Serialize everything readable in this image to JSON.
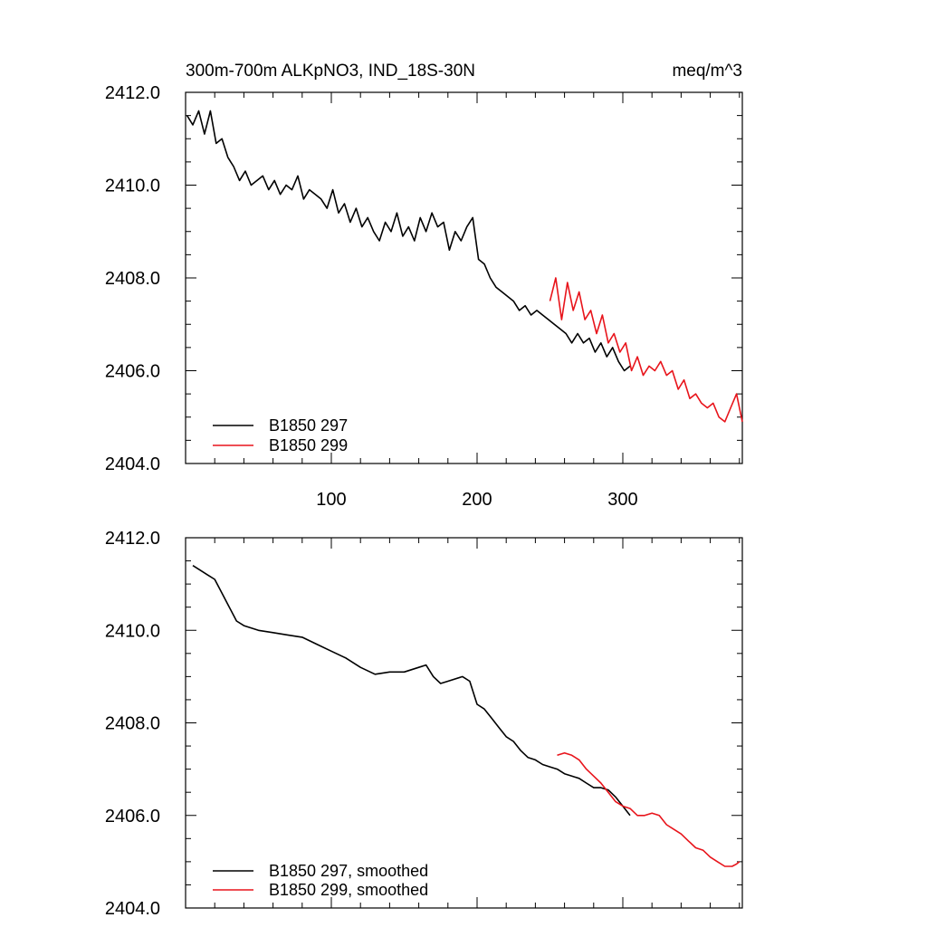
{
  "figure": {
    "left_title": "300m-700m ALKpNO3, IND_18S-30N",
    "right_title": "meq/m^3",
    "colors": {
      "B1850 297": "#000000",
      "B1850 299": "#e8141b"
    }
  },
  "chart_data": [
    {
      "type": "line",
      "title": "300m-700m ALKpNO3, IND_18S-30N",
      "units": "meq/m^3",
      "xlabel": "",
      "ylabel": "",
      "xlim": [
        0,
        382
      ],
      "ylim": [
        2404.0,
        2412.0
      ],
      "yticks": [
        2404.0,
        2406.0,
        2408.0,
        2410.0,
        2412.0
      ],
      "ytick_labels": [
        "2404.0",
        "2406.0",
        "2408.0",
        "2410.0",
        "2412.0"
      ],
      "xticks": [
        100,
        200,
        300
      ],
      "xtick_labels": [
        "100",
        "200",
        "300"
      ],
      "grid": false,
      "legend_position": "bottom-left",
      "series": [
        {
          "name": "B1850 297",
          "color": "#000000",
          "x": [
            1,
            5,
            9,
            13,
            17,
            21,
            25,
            29,
            33,
            37,
            41,
            45,
            49,
            53,
            57,
            61,
            65,
            69,
            73,
            77,
            81,
            85,
            89,
            93,
            97,
            101,
            105,
            109,
            113,
            117,
            121,
            125,
            129,
            133,
            137,
            141,
            145,
            149,
            153,
            157,
            161,
            165,
            169,
            173,
            177,
            181,
            185,
            189,
            193,
            197,
            201,
            205,
            209,
            213,
            217,
            221,
            225,
            229,
            233,
            237,
            241,
            245,
            249,
            253,
            257,
            261,
            265,
            269,
            273,
            277,
            281,
            285,
            289,
            293,
            297,
            301,
            305
          ],
          "y": [
            2411.5,
            2411.3,
            2411.6,
            2411.1,
            2411.6,
            2410.9,
            2411.0,
            2410.6,
            2410.4,
            2410.1,
            2410.3,
            2410.0,
            2410.1,
            2410.2,
            2409.9,
            2410.1,
            2409.8,
            2410.0,
            2409.9,
            2410.2,
            2409.7,
            2409.9,
            2409.8,
            2409.7,
            2409.5,
            2409.9,
            2409.4,
            2409.6,
            2409.2,
            2409.5,
            2409.1,
            2409.3,
            2409.0,
            2408.8,
            2409.2,
            2409.0,
            2409.4,
            2408.9,
            2409.1,
            2408.8,
            2409.3,
            2409.0,
            2409.4,
            2409.1,
            2409.2,
            2408.6,
            2409.0,
            2408.8,
            2409.1,
            2409.3,
            2408.4,
            2408.3,
            2408.0,
            2407.8,
            2407.7,
            2407.6,
            2407.5,
            2407.3,
            2407.4,
            2407.2,
            2407.3,
            2407.2,
            2407.1,
            2407.0,
            2406.9,
            2406.8,
            2406.6,
            2406.8,
            2406.6,
            2406.7,
            2406.4,
            2406.6,
            2406.3,
            2406.5,
            2406.2,
            2406.0,
            2406.1
          ]
        },
        {
          "name": "B1850 299",
          "color": "#e8141b",
          "x": [
            250,
            254,
            258,
            262,
            266,
            270,
            274,
            278,
            282,
            286,
            290,
            294,
            298,
            302,
            306,
            310,
            314,
            318,
            322,
            326,
            330,
            334,
            338,
            342,
            346,
            350,
            354,
            358,
            362,
            366,
            370,
            374,
            378,
            382
          ],
          "y": [
            2407.5,
            2408.0,
            2407.1,
            2407.9,
            2407.3,
            2407.7,
            2407.1,
            2407.3,
            2406.8,
            2407.2,
            2406.6,
            2406.8,
            2406.4,
            2406.6,
            2406.0,
            2406.3,
            2405.9,
            2406.1,
            2406.0,
            2406.2,
            2405.9,
            2406.0,
            2405.6,
            2405.8,
            2405.4,
            2405.5,
            2405.3,
            2405.2,
            2405.3,
            2405.0,
            2404.9,
            2405.2,
            2405.5,
            2404.9
          ]
        }
      ]
    },
    {
      "type": "line",
      "title": "",
      "xlabel": "",
      "ylabel": "",
      "xlim": [
        0,
        382
      ],
      "ylim": [
        2404.0,
        2412.0
      ],
      "yticks": [
        2404.0,
        2406.0,
        2408.0,
        2410.0,
        2412.0
      ],
      "ytick_labels": [
        "2404.0",
        "2406.0",
        "2408.0",
        "2410.0",
        "2412.0"
      ],
      "xticks": [
        100,
        200,
        300
      ],
      "xtick_labels": [],
      "grid": false,
      "legend_position": "bottom-left",
      "series": [
        {
          "name": "B1850 297, smoothed",
          "color": "#000000",
          "x": [
            5,
            10,
            15,
            20,
            25,
            30,
            35,
            40,
            50,
            60,
            70,
            80,
            90,
            100,
            110,
            120,
            130,
            140,
            150,
            160,
            165,
            170,
            175,
            180,
            190,
            195,
            200,
            205,
            210,
            215,
            220,
            225,
            230,
            235,
            240,
            245,
            250,
            255,
            260,
            265,
            270,
            275,
            280,
            285,
            290,
            295,
            300,
            305
          ],
          "y": [
            2411.4,
            2411.3,
            2411.2,
            2411.1,
            2410.8,
            2410.5,
            2410.2,
            2410.1,
            2410.0,
            2409.95,
            2409.9,
            2409.85,
            2409.7,
            2409.55,
            2409.4,
            2409.2,
            2409.05,
            2409.1,
            2409.1,
            2409.2,
            2409.25,
            2409.0,
            2408.85,
            2408.9,
            2409.0,
            2408.9,
            2408.4,
            2408.3,
            2408.1,
            2407.9,
            2407.7,
            2407.6,
            2407.4,
            2407.25,
            2407.2,
            2407.1,
            2407.05,
            2407.0,
            2406.9,
            2406.85,
            2406.8,
            2406.7,
            2406.6,
            2406.6,
            2406.55,
            2406.4,
            2406.2,
            2406.0
          ]
        },
        {
          "name": "B1850 299, smoothed",
          "color": "#e8141b",
          "x": [
            255,
            260,
            265,
            270,
            275,
            280,
            285,
            290,
            295,
            300,
            305,
            310,
            315,
            320,
            325,
            330,
            335,
            340,
            345,
            350,
            355,
            360,
            365,
            370,
            375,
            378,
            380
          ],
          "y": [
            2407.3,
            2407.35,
            2407.3,
            2407.2,
            2407.0,
            2406.85,
            2406.7,
            2406.5,
            2406.3,
            2406.2,
            2406.15,
            2406.0,
            2406.0,
            2406.05,
            2406.0,
            2405.8,
            2405.7,
            2405.6,
            2405.45,
            2405.3,
            2405.25,
            2405.1,
            2405.0,
            2404.9,
            2404.9,
            2404.95,
            2405.0
          ]
        }
      ]
    }
  ]
}
